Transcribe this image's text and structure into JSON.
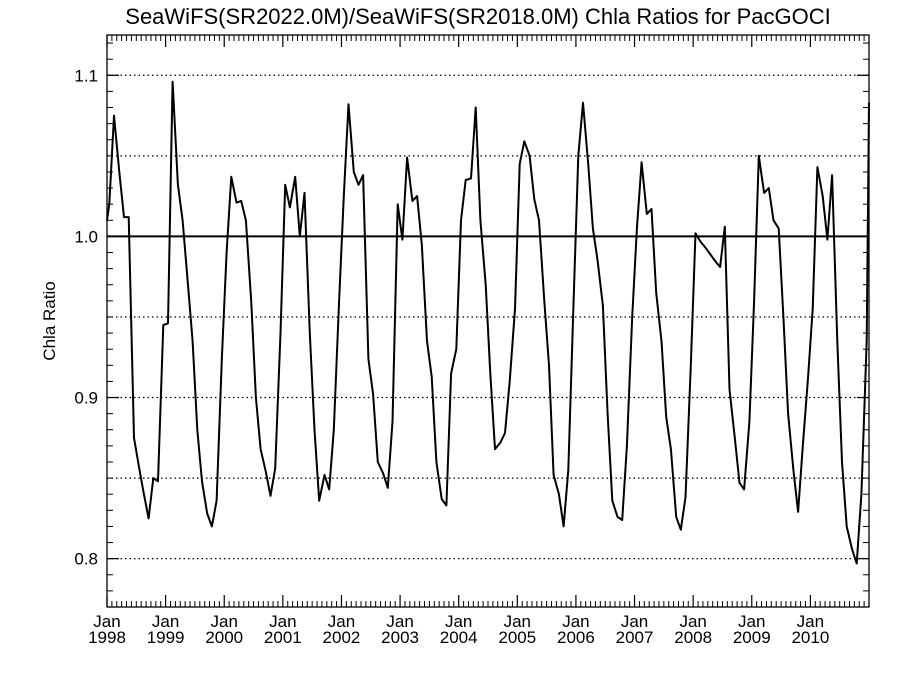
{
  "chart_data": {
    "type": "line",
    "title": "SeaWiFS(SR2022.0M)/SeaWiFS(SR2018.0M)  Chla Ratios for PacGOCI",
    "xlabel": "",
    "ylabel": "Chla Ratio",
    "xlim": [
      1998.0,
      2011.0
    ],
    "ylim": [
      0.77,
      1.125
    ],
    "y_ticks": [
      0.8,
      0.9,
      1.0,
      1.1
    ],
    "y_tick_labels": [
      "0.8",
      "0.9",
      "1.0",
      "1.1"
    ],
    "x_ticks": [
      {
        "month": "Jan",
        "year": "1998",
        "x": 1998
      },
      {
        "month": "Jan",
        "year": "1999",
        "x": 1999
      },
      {
        "month": "Jan",
        "year": "2000",
        "x": 2000
      },
      {
        "month": "Jan",
        "year": "2001",
        "x": 2001
      },
      {
        "month": "Jan",
        "year": "2002",
        "x": 2002
      },
      {
        "month": "Jan",
        "year": "2003",
        "x": 2003
      },
      {
        "month": "Jan",
        "year": "2004",
        "x": 2004
      },
      {
        "month": "Jan",
        "year": "2005",
        "x": 2005
      },
      {
        "month": "Jan",
        "year": "2006",
        "x": 2006
      },
      {
        "month": "Jan",
        "year": "2007",
        "x": 2007
      },
      {
        "month": "Jan",
        "year": "2008",
        "x": 2008
      },
      {
        "month": "Jan",
        "year": "2009",
        "x": 2009
      },
      {
        "month": "Jan",
        "year": "2010",
        "x": 2010
      }
    ],
    "reference_lines": {
      "solid": [
        1.0
      ],
      "dotted": [
        0.8,
        0.85,
        0.9,
        0.95,
        1.05,
        1.1
      ]
    },
    "grid": false,
    "legend": "none",
    "colors": {
      "line": "#000000",
      "background": "#ffffff"
    },
    "series": [
      {
        "x": [
          1998.0,
          1998.04,
          1998.12,
          1998.21,
          1998.29,
          1998.37,
          1998.46,
          1998.54,
          1998.62,
          1998.71,
          1998.79,
          1998.87,
          1998.96,
          1999.04,
          1999.12,
          1999.21,
          1999.29,
          1999.37,
          1999.46,
          1999.54,
          1999.62,
          1999.71,
          1999.79,
          1999.87,
          1999.96,
          2000.04,
          2000.12,
          2000.21,
          2000.29,
          2000.37,
          2000.46,
          2000.54,
          2000.62,
          2000.71,
          2000.79,
          2000.87,
          2000.96,
          2001.04,
          2001.12,
          2001.21,
          2001.29,
          2001.37,
          2001.46,
          2001.54,
          2001.62,
          2001.71,
          2001.79,
          2001.87,
          2001.96,
          2002.04,
          2002.12,
          2002.21,
          2002.29,
          2002.37,
          2002.46,
          2002.54,
          2002.62,
          2002.71,
          2002.79,
          2002.87,
          2002.96,
          2003.04,
          2003.12,
          2003.21,
          2003.29,
          2003.37,
          2003.46,
          2003.54,
          2003.62,
          2003.71,
          2003.79,
          2003.87,
          2003.96,
          2004.04,
          2004.12,
          2004.21,
          2004.29,
          2004.37,
          2004.46,
          2004.54,
          2004.62,
          2004.71,
          2004.79,
          2004.87,
          2004.96,
          2005.04,
          2005.12,
          2005.21,
          2005.29,
          2005.37,
          2005.46,
          2005.54,
          2005.62,
          2005.71,
          2005.79,
          2005.87,
          2005.96,
          2006.04,
          2006.12,
          2006.21,
          2006.29,
          2006.37,
          2006.46,
          2006.54,
          2006.62,
          2006.71,
          2006.79,
          2006.87,
          2006.96,
          2007.04,
          2007.12,
          2007.21,
          2007.29,
          2007.37,
          2007.46,
          2007.54,
          2007.62,
          2007.71,
          2007.79,
          2007.87,
          2007.96,
          2008.04,
          2008.12,
          2008.21,
          2008.29,
          2008.37,
          2008.46,
          2008.54,
          2008.62,
          2008.71,
          2008.79,
          2008.87,
          2008.96,
          2009.04,
          2009.12,
          2009.21,
          2009.29,
          2009.37,
          2009.46,
          2009.54,
          2009.62,
          2009.71,
          2009.79,
          2009.87,
          2009.96,
          2010.04,
          2010.12,
          2010.21,
          2010.29,
          2010.37,
          2010.46,
          2010.54,
          2010.62,
          2010.71,
          2010.79,
          2010.87,
          2010.96,
          2011.0
        ],
        "y": [
          1.01,
          1.02,
          1.075,
          1.04,
          1.012,
          1.012,
          0.875,
          0.858,
          0.842,
          0.825,
          0.85,
          0.848,
          0.945,
          0.946,
          1.096,
          1.032,
          1.01,
          0.975,
          0.935,
          0.88,
          0.848,
          0.828,
          0.82,
          0.836,
          0.925,
          0.99,
          1.037,
          1.021,
          1.022,
          1.01,
          0.96,
          0.9,
          0.868,
          0.854,
          0.839,
          0.856,
          0.94,
          1.032,
          1.018,
          1.037,
          1.0,
          1.027,
          0.94,
          0.88,
          0.836,
          0.852,
          0.843,
          0.88,
          0.96,
          1.025,
          1.082,
          1.04,
          1.032,
          1.038,
          0.924,
          0.902,
          0.86,
          0.853,
          0.844,
          0.885,
          1.02,
          0.998,
          1.049,
          1.022,
          1.025,
          0.995,
          0.935,
          0.913,
          0.86,
          0.837,
          0.833,
          0.915,
          0.93,
          1.01,
          1.035,
          1.036,
          1.08,
          1.01,
          0.97,
          0.915,
          0.868,
          0.872,
          0.878,
          0.91,
          0.955,
          1.045,
          1.059,
          1.05,
          1.023,
          1.01,
          0.96,
          0.92,
          0.852,
          0.84,
          0.82,
          0.855,
          0.96,
          1.05,
          1.083,
          1.045,
          1.005,
          0.985,
          0.957,
          0.89,
          0.836,
          0.826,
          0.824,
          0.87,
          0.95,
          1.005,
          1.046,
          1.014,
          1.017,
          0.965,
          0.935,
          0.888,
          0.868,
          0.826,
          0.818,
          0.838,
          0.92,
          1.002,
          0.997,
          0.993,
          0.989,
          0.985,
          0.981,
          1.006,
          0.905,
          0.875,
          0.847,
          0.843,
          0.885,
          0.96,
          1.05,
          1.027,
          1.03,
          1.01,
          1.005,
          0.95,
          0.89,
          0.855,
          0.829,
          0.87,
          0.912,
          0.955,
          1.043,
          1.025,
          0.998,
          1.038,
          0.935,
          0.86,
          0.82,
          0.806,
          0.797,
          0.84,
          0.935,
          1.083
        ]
      }
    ]
  }
}
